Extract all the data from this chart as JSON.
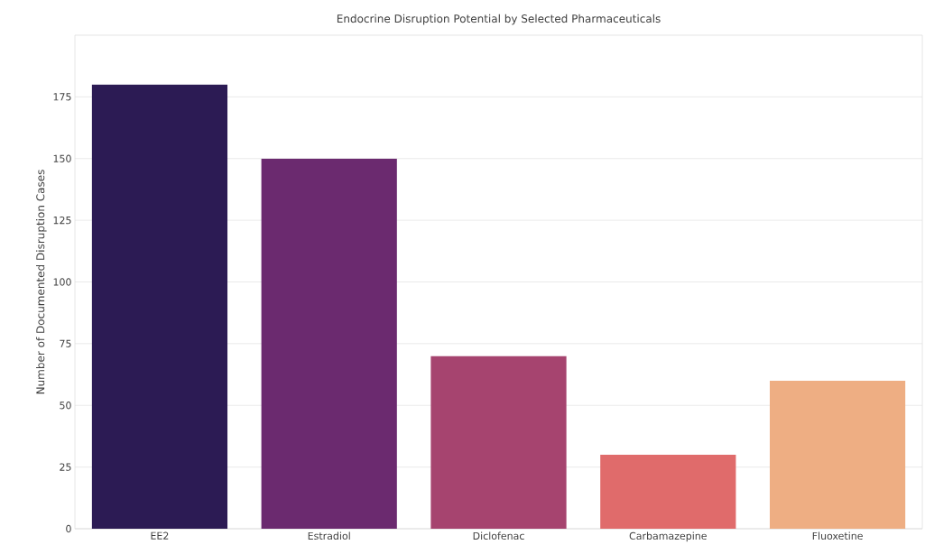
{
  "chart_data": {
    "type": "bar",
    "title": "Endocrine Disruption Potential by Selected Pharmaceuticals",
    "ylabel": "Number of Documented Disruption Cases",
    "categories": [
      "EE2",
      "Estradiol",
      "Diclofenac",
      "Carbamazepine",
      "Fluoxetine"
    ],
    "values": [
      180,
      150,
      70,
      30,
      60
    ],
    "colors": [
      "#2c1b54",
      "#6b2a6f",
      "#a6446f",
      "#e06b6b",
      "#eeae83"
    ],
    "ylim": [
      0,
      200
    ],
    "yticks": [
      0,
      25,
      50,
      75,
      100,
      125,
      150,
      175
    ],
    "grid": "y"
  }
}
